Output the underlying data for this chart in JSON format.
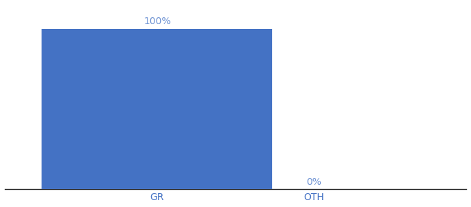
{
  "categories": [
    "GR",
    "OTH"
  ],
  "values": [
    100,
    0
  ],
  "bar_color": "#4472c4",
  "label_color": "#7094d4",
  "tick_color": "#4472c4",
  "background_color": "#ffffff",
  "ylim": [
    0,
    115
  ],
  "bar_width": 0.5,
  "label_fontsize": 10,
  "tick_fontsize": 10,
  "value_labels": [
    "100%",
    "0%"
  ],
  "x_positions": [
    0.33,
    0.67
  ],
  "xlim": [
    0,
    1.0
  ]
}
